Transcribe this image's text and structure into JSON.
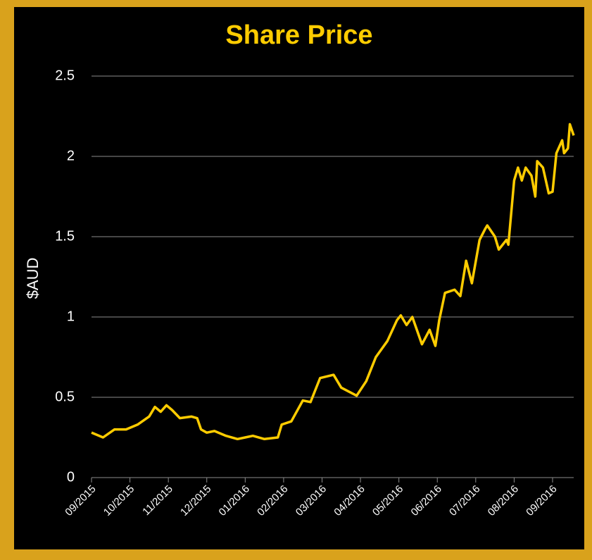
{
  "chart_data": {
    "type": "line",
    "title": "Share Price",
    "ylabel": "$AUD",
    "xlim": [
      0,
      12.55
    ],
    "xticks": [
      {
        "value": 0,
        "label": "09/2015"
      },
      {
        "value": 1,
        "label": "10/2015"
      },
      {
        "value": 2,
        "label": "11/2015"
      },
      {
        "value": 3,
        "label": "12/2015"
      },
      {
        "value": 4,
        "label": "01/2016"
      },
      {
        "value": 5,
        "label": "02/2016"
      },
      {
        "value": 6,
        "label": "03/2016"
      },
      {
        "value": 7,
        "label": "04/2016"
      },
      {
        "value": 8,
        "label": "05/2016"
      },
      {
        "value": 9,
        "label": "06/2016"
      },
      {
        "value": 10,
        "label": "07/2016"
      },
      {
        "value": 11,
        "label": "08/2016"
      },
      {
        "value": 12,
        "label": "09/2016"
      }
    ],
    "ylim": [
      0,
      2.5
    ],
    "yticks": [
      0,
      0.5,
      1,
      1.5,
      2,
      2.5
    ],
    "grid": true,
    "series": [
      {
        "color": "#ffcc00",
        "x": [
          0,
          0.3,
          0.6,
          0.9,
          1.2,
          1.5,
          1.65,
          1.8,
          1.95,
          2.1,
          2.3,
          2.6,
          2.75,
          2.85,
          3.0,
          3.2,
          3.5,
          3.8,
          4.0,
          4.2,
          4.5,
          4.85,
          4.95,
          5.2,
          5.5,
          5.7,
          5.95,
          6.3,
          6.5,
          6.9,
          7.15,
          7.4,
          7.7,
          7.95,
          8.05,
          8.2,
          8.35,
          8.6,
          8.8,
          8.95,
          9.05,
          9.2,
          9.45,
          9.6,
          9.75,
          9.9,
          10.1,
          10.25,
          10.3,
          10.5,
          10.6,
          10.8,
          10.85,
          11.0,
          11.1,
          11.2,
          11.3,
          11.45,
          11.55,
          11.6,
          11.75,
          11.9,
          12.0,
          12.1,
          12.25,
          12.3,
          12.4,
          12.45,
          12.55
        ],
        "values": [
          0.28,
          0.25,
          0.3,
          0.3,
          0.33,
          0.38,
          0.44,
          0.41,
          0.45,
          0.42,
          0.37,
          0.38,
          0.37,
          0.3,
          0.28,
          0.29,
          0.26,
          0.24,
          0.25,
          0.26,
          0.24,
          0.25,
          0.33,
          0.35,
          0.48,
          0.47,
          0.62,
          0.64,
          0.56,
          0.51,
          0.6,
          0.75,
          0.85,
          0.98,
          1.01,
          0.95,
          1.0,
          0.83,
          0.92,
          0.82,
          0.98,
          1.15,
          1.17,
          1.13,
          1.35,
          1.21,
          1.48,
          1.55,
          1.57,
          1.5,
          1.42,
          1.48,
          1.45,
          1.85,
          1.93,
          1.85,
          1.93,
          1.88,
          1.75,
          1.97,
          1.93,
          1.77,
          1.78,
          2.02,
          2.1,
          2.02,
          2.05,
          2.2,
          2.13
        ]
      }
    ]
  }
}
